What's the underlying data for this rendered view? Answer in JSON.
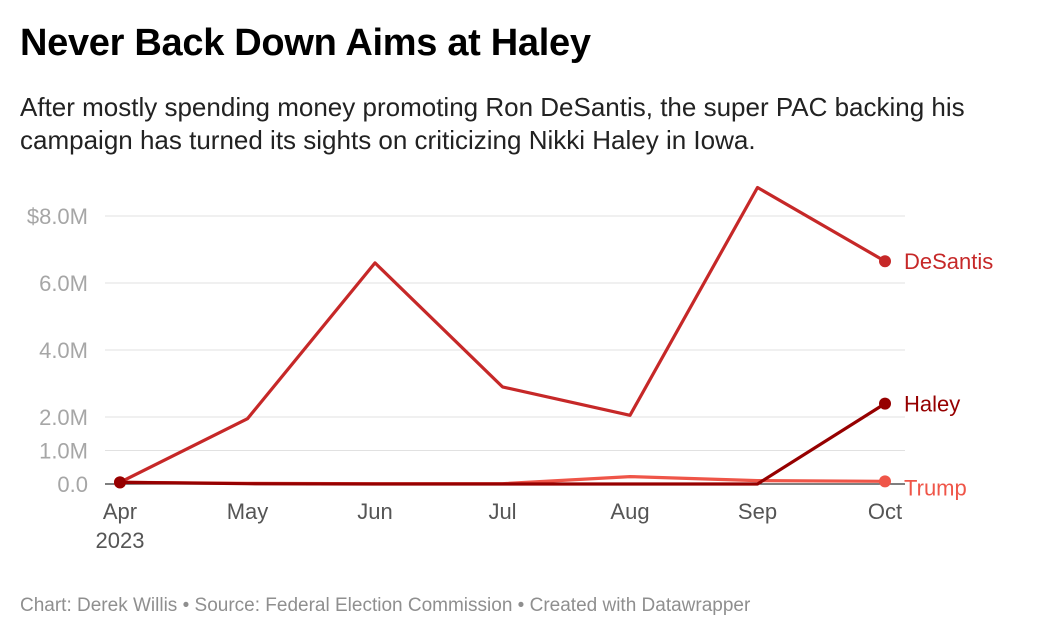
{
  "title": "Never Back Down Aims at Haley",
  "subtitle": "After mostly spending money promoting Ron DeSantis, the super PAC backing his campaign has turned its sights on criticizing Nikki Haley in Iowa.",
  "footer": {
    "chart_credit": "Chart: Derek Willis",
    "source": "Source: Federal Election Commission",
    "tool": "Created with Datawrapper",
    "separator": "•"
  },
  "chart_data": {
    "type": "line",
    "title": "Never Back Down Aims at Haley",
    "x": [
      "Apr",
      "May",
      "Jun",
      "Jul",
      "Aug",
      "Sep",
      "Oct"
    ],
    "x_first_sublabel": "2023",
    "ylim": [
      0,
      8.8
    ],
    "y_ticks": [
      {
        "value": 0,
        "label": "0.0"
      },
      {
        "value": 1,
        "label": "1.0M"
      },
      {
        "value": 2,
        "label": "2.0M"
      },
      {
        "value": 4,
        "label": "4.0M"
      },
      {
        "value": 6,
        "label": "6.0M"
      },
      {
        "value": 8,
        "label": "$8.0M"
      }
    ],
    "y_unit": "millions of dollars",
    "grid": true,
    "series": [
      {
        "name": "DeSantis",
        "color": "#c62828",
        "values": [
          0.05,
          1.95,
          6.6,
          2.9,
          2.05,
          8.85,
          6.65
        ]
      },
      {
        "name": "Trump",
        "color": "#ef5548",
        "values": [
          0.05,
          0.02,
          0.01,
          0.01,
          0.22,
          0.1,
          0.08
        ]
      },
      {
        "name": "Haley",
        "color": "#960000",
        "values": [
          0.05,
          0.01,
          0.0,
          0.0,
          0.0,
          0.0,
          2.4
        ]
      }
    ]
  }
}
